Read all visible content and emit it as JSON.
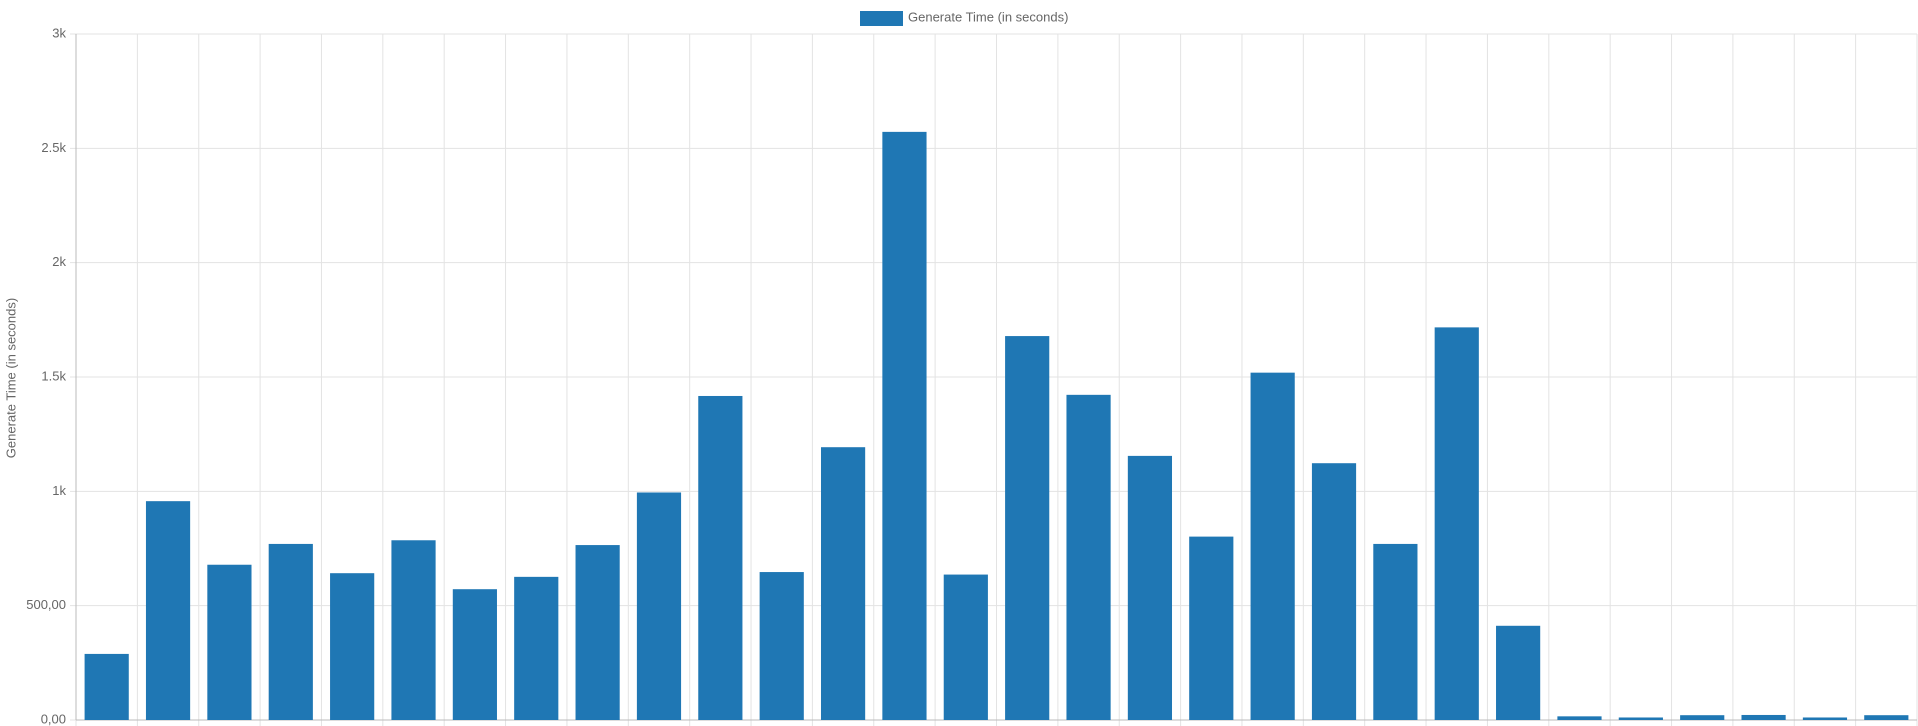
{
  "chart_data": {
    "type": "bar",
    "y_label": "Generate Time (in seconds)",
    "categories": [
      null,
      null,
      null,
      null,
      null,
      null,
      null,
      null,
      null,
      null,
      null,
      null,
      null,
      null,
      null,
      null,
      null,
      null,
      null,
      null,
      null,
      null,
      null,
      null,
      null,
      null,
      null,
      null,
      null,
      null
    ],
    "series": [
      {
        "name": "Generate Time (in seconds)",
        "color": "#1f77b4",
        "values": [
          289,
          957,
          679,
          770,
          642,
          786,
          572,
          626,
          765,
          995,
          1417,
          647,
          1193,
          2572,
          636,
          1679,
          1422,
          1155,
          802,
          1519,
          1123,
          770,
          1717,
          412,
          16,
          11,
          21,
          22,
          11,
          21
        ]
      }
    ],
    "ylim": [
      0,
      3000
    ],
    "yticks": [
      {
        "value": 0,
        "label": "0,00"
      },
      {
        "value": 500,
        "label": "500,00"
      },
      {
        "value": 1000,
        "label": "1k"
      },
      {
        "value": 1500,
        "label": "1.5k"
      },
      {
        "value": 2000,
        "label": "2k"
      },
      {
        "value": 2500,
        "label": "2.5k"
      },
      {
        "value": 3000,
        "label": "3k"
      }
    ],
    "grid": true,
    "legend": "top"
  }
}
